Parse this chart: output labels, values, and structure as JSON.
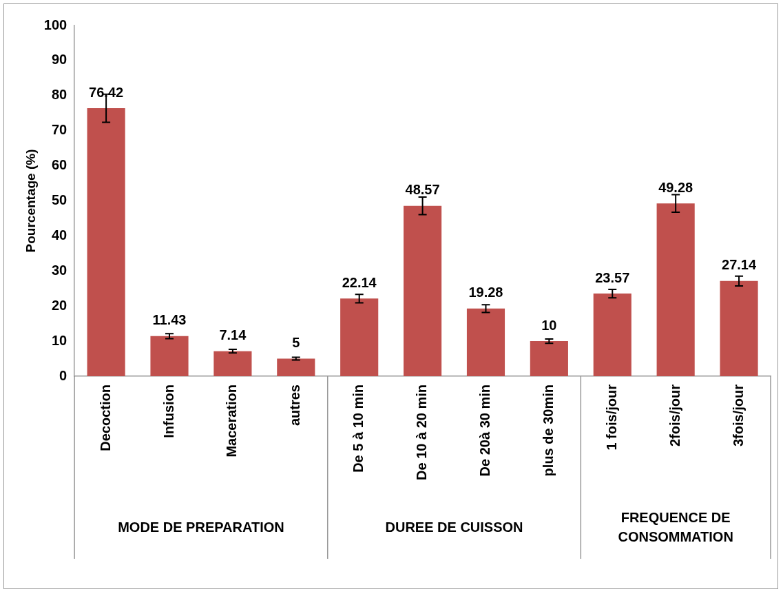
{
  "chart_data": {
    "type": "bar",
    "ylabel": "Pourcentage (%)",
    "categories": [
      "Decoction",
      "Infusion",
      "Maceration",
      "autres",
      "De 5 à 10 min",
      "De 10 à 20 min",
      "De 20à 30 min",
      "plus de 30min",
      "1 fois/jour",
      "2fois/jour",
      "3fois/jour"
    ],
    "values": [
      76.42,
      11.43,
      7.14,
      5,
      22.14,
      48.57,
      19.28,
      10,
      23.57,
      49.28,
      27.14
    ],
    "errors": [
      4,
      0.7,
      0.5,
      0.4,
      1.2,
      2.5,
      1.1,
      0.6,
      1.2,
      2.5,
      1.4
    ],
    "color": "#c0504d",
    "ylim": [
      0,
      100
    ],
    "yticks": [
      0,
      10,
      20,
      30,
      40,
      50,
      60,
      70,
      80,
      90,
      100
    ],
    "grid": false,
    "legend": false,
    "data_labels": true,
    "annotations": [
      "MODE DE PREPARATION",
      "DUREE DE CUISSON",
      "FREQUENCE DE CONSOMMATION"
    ]
  }
}
